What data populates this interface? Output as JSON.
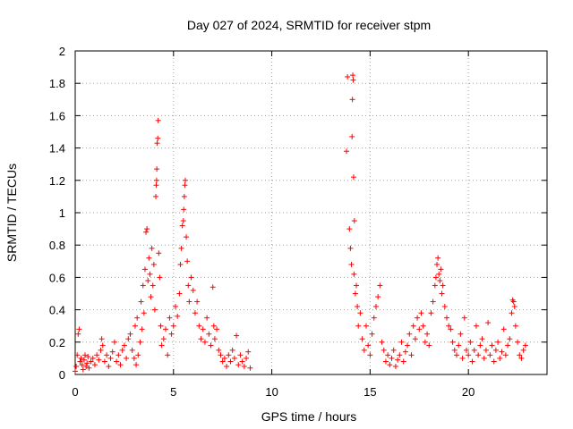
{
  "chart_data": {
    "type": "scatter",
    "title": "Day 027 of 2024, SRMTID for receiver stpm",
    "xlabel": "GPS time / hours",
    "ylabel": "SRMTID / TECUs",
    "xlim": [
      0,
      24
    ],
    "ylim": [
      0,
      2
    ],
    "xticks": [
      "0",
      "5",
      "10",
      "15",
      "20"
    ],
    "yticks": [
      "0",
      "0.2",
      "0.4",
      "0.6",
      "0.8",
      "1",
      "1.2",
      "1.4",
      "1.6",
      "1.8",
      "2"
    ],
    "grid": true,
    "marker": "+",
    "series": [
      {
        "color": "#ff0000",
        "points": [
          [
            0.0,
            0.02
          ],
          [
            0.05,
            0.05
          ],
          [
            0.1,
            0.12
          ],
          [
            0.15,
            0.25
          ],
          [
            0.2,
            0.28
          ],
          [
            0.25,
            0.08
          ],
          [
            0.3,
            0.1
          ],
          [
            0.35,
            0.06
          ],
          [
            0.4,
            0.03
          ],
          [
            0.45,
            0.09
          ],
          [
            0.5,
            0.12
          ],
          [
            0.55,
            0.05
          ],
          [
            0.6,
            0.07
          ],
          [
            0.65,
            0.11
          ],
          [
            0.7,
            0.04
          ],
          [
            0.8,
            0.08
          ],
          [
            0.9,
            0.1
          ],
          [
            1.0,
            0.06
          ],
          [
            1.1,
            0.12
          ],
          [
            1.2,
            0.09
          ],
          [
            1.3,
            0.15
          ],
          [
            1.35,
            0.22
          ],
          [
            1.4,
            0.18
          ],
          [
            1.5,
            0.08
          ],
          [
            1.6,
            0.12
          ],
          [
            1.7,
            0.05
          ],
          [
            1.8,
            0.1
          ],
          [
            1.9,
            0.14
          ],
          [
            2.0,
            0.2
          ],
          [
            2.1,
            0.08
          ],
          [
            2.2,
            0.12
          ],
          [
            2.3,
            0.06
          ],
          [
            2.4,
            0.15
          ],
          [
            2.5,
            0.18
          ],
          [
            2.6,
            0.1
          ],
          [
            2.7,
            0.22
          ],
          [
            2.8,
            0.25
          ],
          [
            2.9,
            0.15
          ],
          [
            3.0,
            0.1
          ],
          [
            3.05,
            0.3
          ],
          [
            3.1,
            0.06
          ],
          [
            3.15,
            0.35
          ],
          [
            3.2,
            0.12
          ],
          [
            3.3,
            0.2
          ],
          [
            3.35,
            0.45
          ],
          [
            3.4,
            0.28
          ],
          [
            3.45,
            0.55
          ],
          [
            3.5,
            0.38
          ],
          [
            3.55,
            0.65
          ],
          [
            3.6,
            0.88
          ],
          [
            3.65,
            0.9
          ],
          [
            3.7,
            0.58
          ],
          [
            3.75,
            0.72
          ],
          [
            3.8,
            0.62
          ],
          [
            3.85,
            0.48
          ],
          [
            3.9,
            0.78
          ],
          [
            3.95,
            0.55
          ],
          [
            4.0,
            0.68
          ],
          [
            4.05,
            0.4
          ],
          [
            4.1,
            1.1
          ],
          [
            4.12,
            1.17
          ],
          [
            4.14,
            1.2
          ],
          [
            4.15,
            1.27
          ],
          [
            4.17,
            1.43
          ],
          [
            4.2,
            1.46
          ],
          [
            4.22,
            1.57
          ],
          [
            4.25,
            0.75
          ],
          [
            4.3,
            0.6
          ],
          [
            4.35,
            0.3
          ],
          [
            4.4,
            0.18
          ],
          [
            4.5,
            0.22
          ],
          [
            4.6,
            0.28
          ],
          [
            4.7,
            0.12
          ],
          [
            4.8,
            0.35
          ],
          [
            4.9,
            0.25
          ],
          [
            5.0,
            0.3
          ],
          [
            5.1,
            0.42
          ],
          [
            5.2,
            0.36
          ],
          [
            5.3,
            0.5
          ],
          [
            5.35,
            0.68
          ],
          [
            5.4,
            0.78
          ],
          [
            5.45,
            0.92
          ],
          [
            5.5,
            0.95
          ],
          [
            5.52,
            1.02
          ],
          [
            5.55,
            1.1
          ],
          [
            5.58,
            1.17
          ],
          [
            5.6,
            1.2
          ],
          [
            5.65,
            0.85
          ],
          [
            5.7,
            0.7
          ],
          [
            5.75,
            0.55
          ],
          [
            5.8,
            0.45
          ],
          [
            5.9,
            0.6
          ],
          [
            6.0,
            0.52
          ],
          [
            6.1,
            0.38
          ],
          [
            6.2,
            0.45
          ],
          [
            6.3,
            0.3
          ],
          [
            6.4,
            0.22
          ],
          [
            6.5,
            0.28
          ],
          [
            6.6,
            0.2
          ],
          [
            6.7,
            0.35
          ],
          [
            6.8,
            0.25
          ],
          [
            6.9,
            0.18
          ],
          [
            7.0,
            0.54
          ],
          [
            7.05,
            0.3
          ],
          [
            7.1,
            0.22
          ],
          [
            7.2,
            0.28
          ],
          [
            7.3,
            0.15
          ],
          [
            7.4,
            0.12
          ],
          [
            7.5,
            0.08
          ],
          [
            7.6,
            0.1
          ],
          [
            7.7,
            0.05
          ],
          [
            7.8,
            0.12
          ],
          [
            7.9,
            0.08
          ],
          [
            8.0,
            0.15
          ],
          [
            8.1,
            0.1
          ],
          [
            8.2,
            0.24
          ],
          [
            8.3,
            0.06
          ],
          [
            8.4,
            0.12
          ],
          [
            8.5,
            0.08
          ],
          [
            8.6,
            0.05
          ],
          [
            8.7,
            0.1
          ],
          [
            8.8,
            0.14
          ],
          [
            8.9,
            0.04
          ],
          [
            13.8,
            1.38
          ],
          [
            13.85,
            1.84
          ],
          [
            13.95,
            0.9
          ],
          [
            14.0,
            0.78
          ],
          [
            14.05,
            0.68
          ],
          [
            14.08,
            1.47
          ],
          [
            14.1,
            1.7
          ],
          [
            14.12,
            1.85
          ],
          [
            14.14,
            1.82
          ],
          [
            14.16,
            1.22
          ],
          [
            14.18,
            0.62
          ],
          [
            14.2,
            0.95
          ],
          [
            14.25,
            0.5
          ],
          [
            14.3,
            0.55
          ],
          [
            14.35,
            0.42
          ],
          [
            14.4,
            0.3
          ],
          [
            14.5,
            0.38
          ],
          [
            14.6,
            0.22
          ],
          [
            14.7,
            0.15
          ],
          [
            14.8,
            0.3
          ],
          [
            14.9,
            0.18
          ],
          [
            15.0,
            0.12
          ],
          [
            15.1,
            0.25
          ],
          [
            15.2,
            0.35
          ],
          [
            15.3,
            0.42
          ],
          [
            15.4,
            0.48
          ],
          [
            15.5,
            0.55
          ],
          [
            15.6,
            0.2
          ],
          [
            15.7,
            0.15
          ],
          [
            15.8,
            0.08
          ],
          [
            15.9,
            0.12
          ],
          [
            16.0,
            0.06
          ],
          [
            16.1,
            0.1
          ],
          [
            16.2,
            0.15
          ],
          [
            16.3,
            0.05
          ],
          [
            16.4,
            0.09
          ],
          [
            16.5,
            0.12
          ],
          [
            16.6,
            0.2
          ],
          [
            16.7,
            0.08
          ],
          [
            16.8,
            0.14
          ],
          [
            16.9,
            0.18
          ],
          [
            17.0,
            0.25
          ],
          [
            17.1,
            0.12
          ],
          [
            17.2,
            0.3
          ],
          [
            17.3,
            0.22
          ],
          [
            17.4,
            0.35
          ],
          [
            17.5,
            0.28
          ],
          [
            17.6,
            0.38
          ],
          [
            17.7,
            0.3
          ],
          [
            17.8,
            0.2
          ],
          [
            17.9,
            0.25
          ],
          [
            18.0,
            0.18
          ],
          [
            18.1,
            0.38
          ],
          [
            18.2,
            0.45
          ],
          [
            18.3,
            0.55
          ],
          [
            18.35,
            0.6
          ],
          [
            18.4,
            0.68
          ],
          [
            18.45,
            0.72
          ],
          [
            18.5,
            0.62
          ],
          [
            18.55,
            0.58
          ],
          [
            18.6,
            0.65
          ],
          [
            18.65,
            0.5
          ],
          [
            18.7,
            0.55
          ],
          [
            18.8,
            0.42
          ],
          [
            18.9,
            0.35
          ],
          [
            19.0,
            0.3
          ],
          [
            19.1,
            0.28
          ],
          [
            19.2,
            0.2
          ],
          [
            19.3,
            0.15
          ],
          [
            19.4,
            0.12
          ],
          [
            19.5,
            0.18
          ],
          [
            19.6,
            0.25
          ],
          [
            19.7,
            0.1
          ],
          [
            19.8,
            0.35
          ],
          [
            19.9,
            0.15
          ],
          [
            20.0,
            0.12
          ],
          [
            20.1,
            0.2
          ],
          [
            20.2,
            0.08
          ],
          [
            20.3,
            0.15
          ],
          [
            20.4,
            0.3
          ],
          [
            20.5,
            0.12
          ],
          [
            20.6,
            0.18
          ],
          [
            20.7,
            0.22
          ],
          [
            20.8,
            0.1
          ],
          [
            20.9,
            0.15
          ],
          [
            21.0,
            0.32
          ],
          [
            21.1,
            0.12
          ],
          [
            21.2,
            0.18
          ],
          [
            21.3,
            0.08
          ],
          [
            21.4,
            0.15
          ],
          [
            21.5,
            0.2
          ],
          [
            21.6,
            0.1
          ],
          [
            21.7,
            0.14
          ],
          [
            21.8,
            0.28
          ],
          [
            21.9,
            0.12
          ],
          [
            22.0,
            0.18
          ],
          [
            22.1,
            0.22
          ],
          [
            22.2,
            0.38
          ],
          [
            22.25,
            0.46
          ],
          [
            22.3,
            0.45
          ],
          [
            22.35,
            0.42
          ],
          [
            22.4,
            0.3
          ],
          [
            22.5,
            0.2
          ],
          [
            22.6,
            0.12
          ],
          [
            22.7,
            0.1
          ],
          [
            22.8,
            0.15
          ],
          [
            22.9,
            0.18
          ]
        ]
      }
    ]
  }
}
